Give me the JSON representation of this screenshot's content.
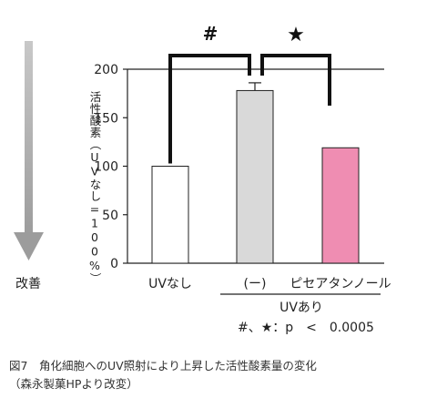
{
  "chart_data": {
    "type": "bar",
    "categories": [
      "UVなし",
      "(ー)",
      "ピセアタンノール"
    ],
    "values": [
      100,
      178,
      119
    ],
    "errors": [
      null,
      8,
      null
    ],
    "bar_colors": [
      "#ffffff",
      "#d9d9d9",
      "#ef8db2"
    ],
    "ylim": [
      0,
      200
    ],
    "yticks": [
      0,
      50,
      100,
      150,
      200
    ],
    "ylabel": "活性酸素（UVなし=100%）",
    "group_label": "UVあり",
    "significance": [
      {
        "from": 0,
        "to": 1,
        "symbol": "#"
      },
      {
        "from": 1,
        "to": 2,
        "symbol": "★"
      }
    ],
    "p_note": "#、★：p　<　0.0005",
    "improvement_label": "改善",
    "grid": false
  },
  "caption": {
    "line1": "図7　角化細胞へのUV照射により上昇した活性酸素量の変化",
    "line2": "（森永製菓HPより改変）"
  },
  "colors": {
    "arrow": "#a6a6a6",
    "axis": "#222222"
  }
}
